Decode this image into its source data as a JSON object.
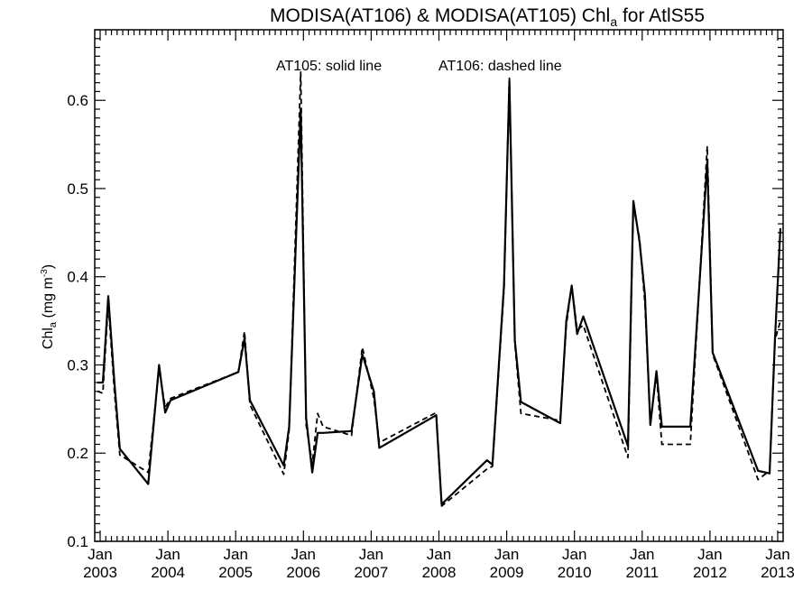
{
  "chart_data": {
    "type": "line",
    "title_main": "MODISA(AT106) & MODISA(AT105)  Chl",
    "title_sub": "a",
    "title_tail": " for AtlS55",
    "ylabel_main": "Chl",
    "ylabel_sub": "a",
    "ylabel_tail": " (mg m",
    "ylabel_sup": "-3",
    "ylabel_close": ")",
    "annotation_solid": "AT105: solid line",
    "annotation_dashed": "AT106: dashed line",
    "xlim": [
      2002.92,
      2013.08
    ],
    "ylim": [
      0.1,
      0.68
    ],
    "y_ticks": [
      0.1,
      0.2,
      0.3,
      0.4,
      0.5,
      0.6
    ],
    "y_tick_labels": [
      "0.1",
      "0.2",
      "0.3",
      "0.4",
      "0.5",
      "0.6"
    ],
    "x_ticks": [
      {
        "value": 2003,
        "month": "Jan",
        "year": "2003"
      },
      {
        "value": 2004,
        "month": "Jan",
        "year": "2004"
      },
      {
        "value": 2005,
        "month": "Jan",
        "year": "2005"
      },
      {
        "value": 2006,
        "month": "Jan",
        "year": "2006"
      },
      {
        "value": 2007,
        "month": "Jan",
        "year": "2007"
      },
      {
        "value": 2008,
        "month": "Jan",
        "year": "2008"
      },
      {
        "value": 2009,
        "month": "Jan",
        "year": "2009"
      },
      {
        "value": 2010,
        "month": "Jan",
        "year": "2010"
      },
      {
        "value": 2011,
        "month": "Jan",
        "year": "2011"
      },
      {
        "value": 2012,
        "month": "Jan",
        "year": "2012"
      },
      {
        "value": 2013,
        "month": "Jan",
        "year": "2013"
      }
    ],
    "series": [
      {
        "style": "solid",
        "x": [
          2002.96,
          2003.04,
          2003.12,
          2003.21,
          2003.29,
          2003.71,
          2003.87,
          2003.96,
          2004.04,
          2005.04,
          2005.13,
          2005.21,
          2005.71,
          2005.79,
          2005.96,
          2006.04,
          2006.13,
          2006.21,
          2006.29,
          2006.71,
          2006.87,
          2007.04,
          2007.12,
          2007.96,
          2008.04,
          2008.71,
          2008.79,
          2008.96,
          2009.04,
          2009.12,
          2009.21,
          2009.79,
          2009.88,
          2009.96,
          2010.04,
          2010.13,
          2010.79,
          2010.87,
          2010.96,
          2011.04,
          2011.12,
          2011.21,
          2011.29,
          2011.71,
          2011.96,
          2012.04,
          2012.71,
          2012.88,
          2012.96,
          2013.04
        ],
        "y": [
          0.28,
          0.28,
          0.378,
          0.28,
          0.205,
          0.165,
          0.3,
          0.246,
          0.26,
          0.292,
          0.33,
          0.26,
          0.186,
          0.23,
          0.59,
          0.24,
          0.178,
          0.223,
          0.223,
          0.225,
          0.312,
          0.27,
          0.206,
          0.243,
          0.142,
          0.192,
          0.187,
          0.39,
          0.622,
          0.328,
          0.258,
          0.234,
          0.35,
          0.39,
          0.335,
          0.355,
          0.208,
          0.486,
          0.44,
          0.38,
          0.232,
          0.293,
          0.23,
          0.23,
          0.53,
          0.314,
          0.18,
          0.177,
          0.33,
          0.455
        ]
      },
      {
        "style": "dashed",
        "x": [
          2002.96,
          2003.04,
          2003.12,
          2003.21,
          2003.29,
          2003.71,
          2003.87,
          2003.96,
          2004.04,
          2005.04,
          2005.13,
          2005.21,
          2005.71,
          2005.79,
          2005.96,
          2006.04,
          2006.13,
          2006.21,
          2006.29,
          2006.71,
          2006.87,
          2007.04,
          2007.12,
          2007.96,
          2008.04,
          2008.71,
          2008.79,
          2008.96,
          2009.04,
          2009.12,
          2009.21,
          2009.79,
          2009.88,
          2009.96,
          2010.04,
          2010.13,
          2010.79,
          2010.87,
          2010.96,
          2011.04,
          2011.12,
          2011.21,
          2011.29,
          2011.71,
          2011.96,
          2012.04,
          2012.71,
          2012.88,
          2012.96,
          2013.04
        ],
        "y": [
          0.27,
          0.268,
          0.37,
          0.27,
          0.198,
          0.178,
          0.295,
          0.252,
          0.262,
          0.292,
          0.338,
          0.255,
          0.176,
          0.226,
          0.632,
          0.232,
          0.188,
          0.245,
          0.23,
          0.22,
          0.32,
          0.262,
          0.212,
          0.246,
          0.14,
          0.182,
          0.185,
          0.385,
          0.625,
          0.325,
          0.245,
          0.237,
          0.345,
          0.39,
          0.34,
          0.345,
          0.195,
          0.48,
          0.444,
          0.37,
          0.235,
          0.29,
          0.21,
          0.21,
          0.548,
          0.312,
          0.17,
          0.18,
          0.328,
          0.35
        ]
      }
    ]
  }
}
